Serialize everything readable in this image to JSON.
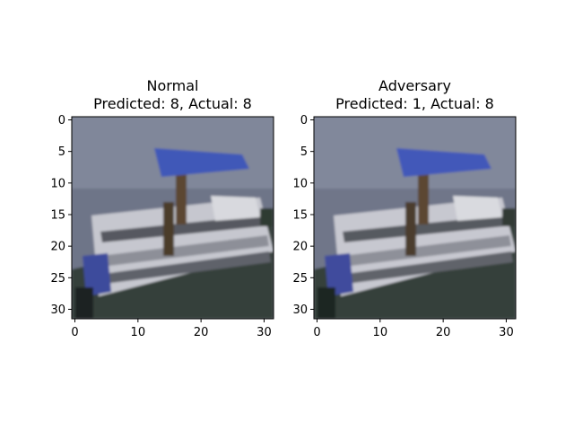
{
  "chart_data": [
    {
      "type": "image",
      "title_line1": "Normal",
      "title_line2": "Predicted: 8, Actual: 8",
      "x_ticks": [
        0,
        10,
        20,
        30
      ],
      "y_ticks": [
        0,
        5,
        10,
        15,
        20,
        25,
        30
      ],
      "xlim": [
        -0.5,
        31.5
      ],
      "ylim": [
        31.5,
        -0.5
      ],
      "image_size": [
        32,
        32
      ]
    },
    {
      "type": "image",
      "title_line1": "Adversary",
      "title_line2": "Predicted: 1, Actual: 8",
      "x_ticks": [
        0,
        10,
        20,
        30
      ],
      "y_ticks": [
        0,
        5,
        10,
        15,
        20,
        25,
        30
      ],
      "xlim": [
        -0.5,
        31.5
      ],
      "ylim": [
        31.5,
        -0.5
      ],
      "image_size": [
        32,
        32
      ]
    }
  ],
  "colors": {
    "sky": "#7f8597",
    "canopy": "#4158b8",
    "hull": "#c9c9cf",
    "stripe_dark": "#4a4c52",
    "water": "#2e3a34",
    "pole": "#5b4630",
    "side_blue": "#3a4a9a"
  }
}
